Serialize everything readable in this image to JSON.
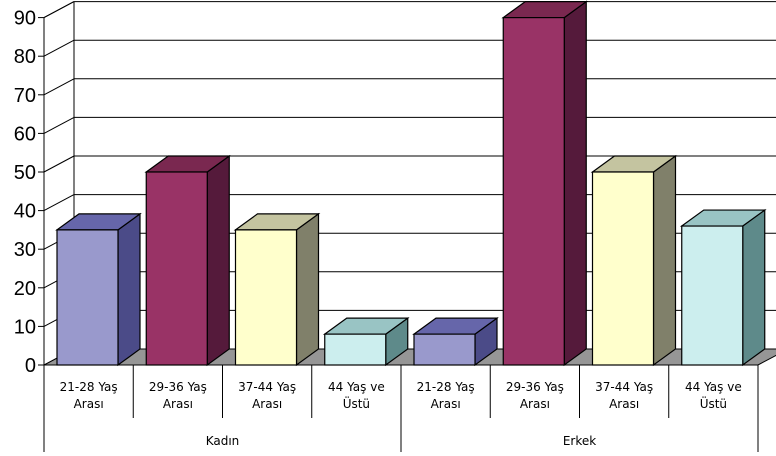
{
  "chart_data": {
    "type": "bar",
    "three_d": true,
    "groups": [
      {
        "label": "Kadın",
        "categories": [
          "21-28 Yaş Arası",
          "29-36 Yaş Arası",
          "37-44 Yaş Arası",
          "44 Yaş ve Üstü"
        ],
        "values": [
          35,
          50,
          35,
          8
        ]
      },
      {
        "label": "Erkek",
        "categories": [
          "21-28 Yaş Arası",
          "29-36 Yaş Arası",
          "37-44 Yaş Arası",
          "44 Yaş ve Üstü"
        ],
        "values": [
          8,
          90,
          50,
          36
        ]
      }
    ],
    "category_lines": [
      [
        "21-28 Yaş",
        "Arası"
      ],
      [
        "29-36 Yaş",
        "Arası"
      ],
      [
        "37-44 Yaş",
        "Arası"
      ],
      [
        "44 Yaş ve",
        "Üstü"
      ]
    ],
    "bar_colors": [
      {
        "front": "#9999cc",
        "top": "#6666aa",
        "side": "#4b4b88"
      },
      {
        "front": "#993366",
        "top": "#7a2850",
        "side": "#551a3b"
      },
      {
        "front": "#ffffcc",
        "top": "#c4c4a0",
        "side": "#80806a"
      },
      {
        "front": "#cceeee",
        "top": "#99c4c4",
        "side": "#5e8a8a"
      }
    ],
    "ylim": [
      0,
      90
    ],
    "yticks": [
      0,
      10,
      20,
      30,
      40,
      50,
      60,
      70,
      80,
      90
    ],
    "grid": true,
    "title": "",
    "xlabel": "",
    "ylabel": ""
  }
}
